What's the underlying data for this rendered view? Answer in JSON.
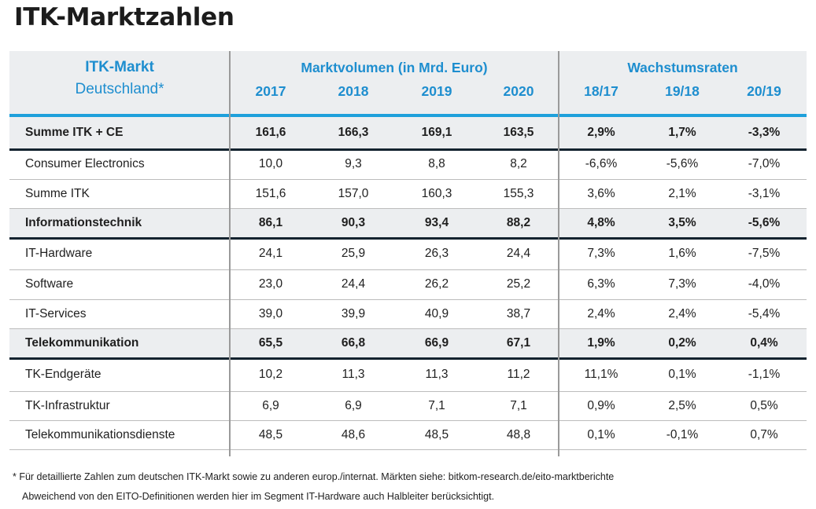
{
  "title": "ITK-Marktzahlen",
  "header": {
    "row_label_line1": "ITK-Markt",
    "row_label_line2": "Deutschland*",
    "group1": "Marktvolumen (in Mrd. Euro)",
    "group2": "Wachstumsraten",
    "columns": [
      "2017",
      "2018",
      "2019",
      "2020",
      "18/17",
      "19/18",
      "20/19"
    ]
  },
  "colors": {
    "accent": "#1ea0db",
    "header_text": "#1e8ecf",
    "summary_bg": "#eceef0",
    "rule": "#14232f"
  },
  "chart_data": {
    "type": "table",
    "title": "ITK-Marktzahlen",
    "columns": [
      "ITK-Markt Deutschland*",
      "2017",
      "2018",
      "2019",
      "2020",
      "18/17",
      "19/18",
      "20/19"
    ],
    "rows": [
      {
        "label": "Summe ITK + CE",
        "bold": true,
        "values": [
          "161,6",
          "166,3",
          "169,1",
          "163,5",
          "2,9%",
          "1,7%",
          "-3,3%"
        ]
      },
      {
        "label": "Consumer Electronics",
        "bold": false,
        "values": [
          "10,0",
          "9,3",
          "8,8",
          "8,2",
          "-6,6%",
          "-5,6%",
          "-7,0%"
        ]
      },
      {
        "label": "Summe ITK",
        "bold": false,
        "values": [
          "151,6",
          "157,0",
          "160,3",
          "155,3",
          "3,6%",
          "2,1%",
          "-3,1%"
        ]
      },
      {
        "label": "Informationstechnik",
        "bold": true,
        "values": [
          "86,1",
          "90,3",
          "93,4",
          "88,2",
          "4,8%",
          "3,5%",
          "-5,6%"
        ]
      },
      {
        "label": "IT-Hardware",
        "bold": false,
        "values": [
          "24,1",
          "25,9",
          "26,3",
          "24,4",
          "7,3%",
          "1,6%",
          "-7,5%"
        ]
      },
      {
        "label": "Software",
        "bold": false,
        "values": [
          "23,0",
          "24,4",
          "26,2",
          "25,2",
          "6,3%",
          "7,3%",
          "-4,0%"
        ]
      },
      {
        "label": "IT-Services",
        "bold": false,
        "values": [
          "39,0",
          "39,9",
          "40,9",
          "38,7",
          "2,4%",
          "2,4%",
          "-5,4%"
        ]
      },
      {
        "label": "Telekommunikation",
        "bold": true,
        "values": [
          "65,5",
          "66,8",
          "66,9",
          "67,1",
          "1,9%",
          "0,2%",
          "0,4%"
        ]
      },
      {
        "label": "TK-Endgeräte",
        "bold": false,
        "values": [
          "10,2",
          "11,3",
          "11,3",
          "11,2",
          "11,1%",
          "0,1%",
          "-1,1%"
        ]
      },
      {
        "label": "TK-Infrastruktur",
        "bold": false,
        "values": [
          "6,9",
          "6,9",
          "7,1",
          "7,1",
          "0,9%",
          "2,5%",
          "0,5%"
        ]
      },
      {
        "label": "Telekommunikationsdienste",
        "bold": false,
        "values": [
          "48,5",
          "48,6",
          "48,5",
          "48,8",
          "0,1%",
          "-0,1%",
          "0,7%"
        ]
      }
    ]
  },
  "footnotes": [
    "* Für detaillierte Zahlen zum deutschen ITK-Markt sowie zu anderen europ./internat. Märkten siehe: bitkom-research.de/eito-marktberichte",
    "Abweichend von den EITO-Definitionen werden hier im Segment IT-Hardware auch Halbleiter berücksichtigt."
  ]
}
